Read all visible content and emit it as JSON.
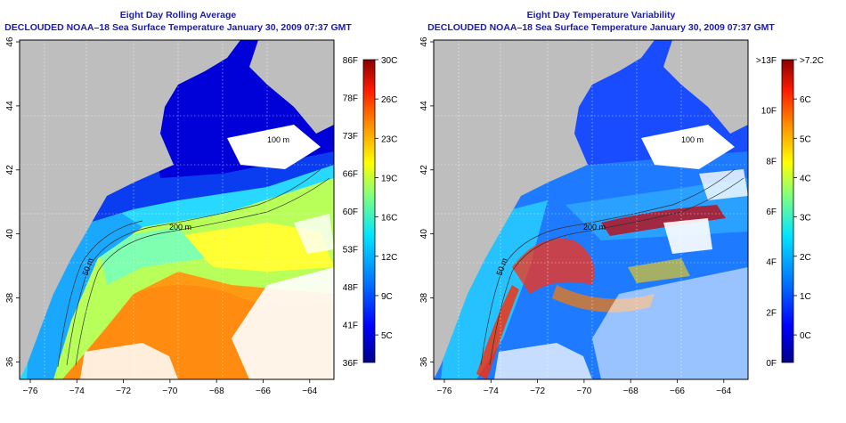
{
  "left": {
    "title_line1": "Eight Day Rolling Average",
    "title_line2": "DECLOUDED NOAA–18 Sea Surface Temperature January 30, 2009 07:37 GMT",
    "colorbar_f": [
      "86F",
      "78F",
      "73F",
      "66F",
      "60F",
      "53F",
      "48F",
      "41F",
      "36F"
    ],
    "colorbar_c": [
      "30C",
      "26C",
      "23C",
      "19C",
      "16C",
      "12C",
      "9C",
      "5C"
    ],
    "contour_labels": [
      "200 m",
      "50 m",
      "100 m"
    ]
  },
  "right": {
    "title_line1": "Eight Day Temperature Variability",
    "title_line2": "DECLOUDED NOAA–18 Sea Surface Temperature January 30, 2009 07:37 GMT",
    "colorbar_f": [
      ">13F",
      "10F",
      "8F",
      "6F",
      "4F",
      "2F",
      "0F"
    ],
    "colorbar_c": [
      ">7.2C",
      "6C",
      "5C",
      "4C",
      "3C",
      "2C",
      "1C",
      "0C"
    ],
    "contour_labels": [
      "200 m",
      "50 m",
      "100 m"
    ]
  },
  "axes": {
    "lon_ticks": [
      "−76",
      "−74",
      "−72",
      "−70",
      "−68",
      "−66",
      "−64"
    ],
    "lat_ticks": [
      "46",
      "44",
      "42",
      "40",
      "38",
      "36"
    ]
  },
  "colors": {
    "title": "#1a1ab4",
    "land": "#bebebe",
    "cloud": "#ffffff"
  }
}
